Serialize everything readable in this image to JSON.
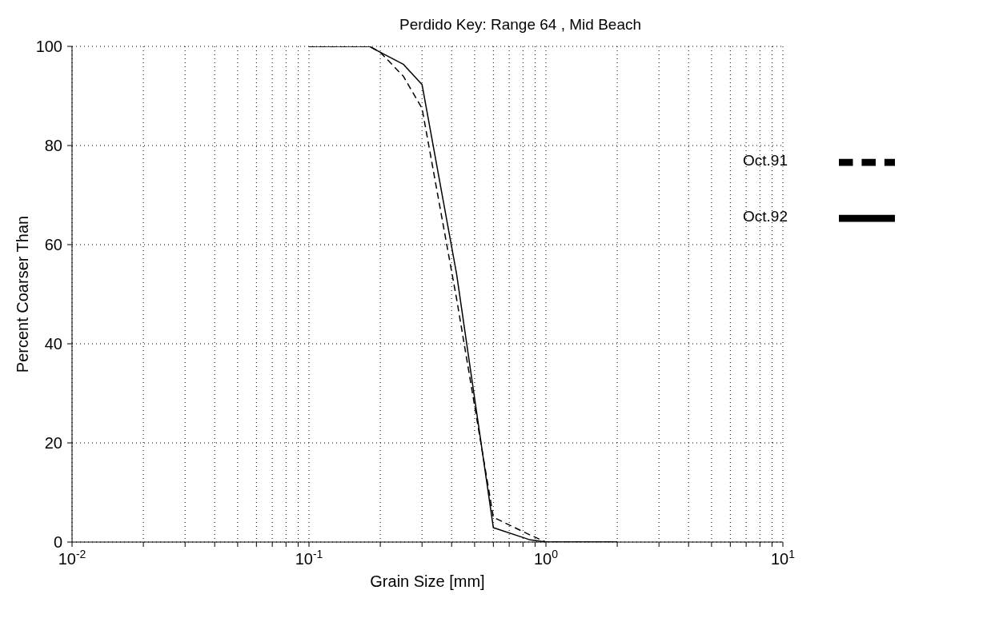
{
  "chart_data": {
    "type": "line",
    "title": "Perdido Key:  Range 64  ,  Mid Beach",
    "xlabel": "Grain Size  [mm]",
    "ylabel": "Percent Coarser Than",
    "log": "x",
    "grid": true,
    "legend": "top right",
    "xlim": [
      0.01,
      10
    ],
    "ylim": [
      0,
      100
    ],
    "xticks": [
      {
        "value": 0.01,
        "label": "10$^{-2}$"
      },
      {
        "value": 0.02,
        "label": null
      },
      {
        "value": 0.03,
        "label": null
      },
      {
        "value": 0.04,
        "label": null
      },
      {
        "value": 0.05,
        "label": null
      },
      {
        "value": 0.06,
        "label": null
      },
      {
        "value": 0.07,
        "label": null
      },
      {
        "value": 0.08,
        "label": null
      },
      {
        "value": 0.09,
        "label": null
      },
      {
        "value": 0.1,
        "label": "10$^{-1}$"
      },
      {
        "value": 0.2,
        "label": null
      },
      {
        "value": 0.3,
        "label": null
      },
      {
        "value": 0.4,
        "label": null
      },
      {
        "value": 0.5,
        "label": null
      },
      {
        "value": 0.6,
        "label": null
      },
      {
        "value": 0.7,
        "label": null
      },
      {
        "value": 0.8,
        "label": null
      },
      {
        "value": 0.9,
        "label": null
      },
      {
        "value": 1,
        "label": "10$^{0}$"
      },
      {
        "value": 2,
        "label": null
      },
      {
        "value": 3,
        "label": null
      },
      {
        "value": 4,
        "label": null
      },
      {
        "value": 5,
        "label": null
      },
      {
        "value": 6,
        "label": null
      },
      {
        "value": 7,
        "label": null
      },
      {
        "value": 8,
        "label": null
      },
      {
        "value": 9,
        "label": null
      },
      {
        "value": 10,
        "label": "10$^{1}$"
      }
    ],
    "yticks": [
      0,
      20,
      40,
      60,
      80,
      100
    ],
    "series": [
      {
        "name": "Oct.91",
        "color": "#000000",
        "line_style": "dashed",
        "x": [
          0.1,
          0.18,
          0.2,
          0.25,
          0.3,
          0.42,
          0.6,
          0.85,
          1,
          2
        ],
        "values": [
          100,
          100,
          98.8,
          94,
          87.5,
          49,
          5,
          1.5,
          0,
          0
        ]
      },
      {
        "name": "Oct.92",
        "color": "#000000",
        "line_style": "solid",
        "x": [
          0.1,
          0.18,
          0.2,
          0.25,
          0.3,
          0.42,
          0.6,
          0.85,
          1,
          2
        ],
        "values": [
          100,
          100,
          98.8,
          96.4,
          92.3,
          54,
          2.9,
          0.5,
          0,
          0
        ]
      }
    ]
  }
}
